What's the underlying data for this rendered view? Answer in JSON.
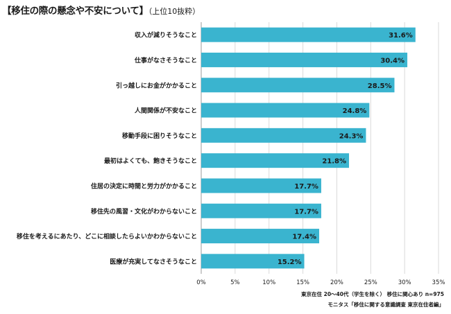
{
  "title": {
    "main": "【移住の際の懸念や不安について】",
    "sub": "（上位10抜粋）"
  },
  "source": {
    "line1": "東京在住 20～40代（学生を除く） 移住に関心あり n=975",
    "line2": "モニタス「移住に関する意識調査 東京在住者編」"
  },
  "colors": {
    "bar": "#3ab4cf",
    "grid": "#d9d9d9",
    "axis": "#999999",
    "text": "#1a1a1a"
  },
  "chart_data": {
    "type": "bar",
    "orientation": "horizontal",
    "categories": [
      "収入が減りそうなこと",
      "仕事がなさそうなこと",
      "引っ越しにお金がかかること",
      "人間関係が不安なこと",
      "移動手段に困りそうなこと",
      "最初はよくても、飽きそうなこと",
      "住居の決定に時間と労力がかかること",
      "移住先の風習・文化がわからないこと",
      "移住を考えるにあたり、どこに相談したらよいかわからないこと",
      "医療が充実してなさそうなこと"
    ],
    "values": [
      31.6,
      30.4,
      28.5,
      24.8,
      24.3,
      21.8,
      17.7,
      17.7,
      17.4,
      15.2
    ],
    "value_labels": [
      "31.6%",
      "30.4%",
      "28.5%",
      "24.8%",
      "24.3%",
      "21.8%",
      "17.7%",
      "17.7%",
      "17.4%",
      "15.2%"
    ],
    "xlim": [
      0,
      35
    ],
    "xticks": [
      0,
      5,
      10,
      15,
      20,
      25,
      30,
      35
    ],
    "xtick_labels": [
      "0%",
      "5%",
      "10%",
      "15%",
      "20%",
      "25%",
      "30%",
      "35%"
    ],
    "grid": true,
    "legend": "none"
  }
}
